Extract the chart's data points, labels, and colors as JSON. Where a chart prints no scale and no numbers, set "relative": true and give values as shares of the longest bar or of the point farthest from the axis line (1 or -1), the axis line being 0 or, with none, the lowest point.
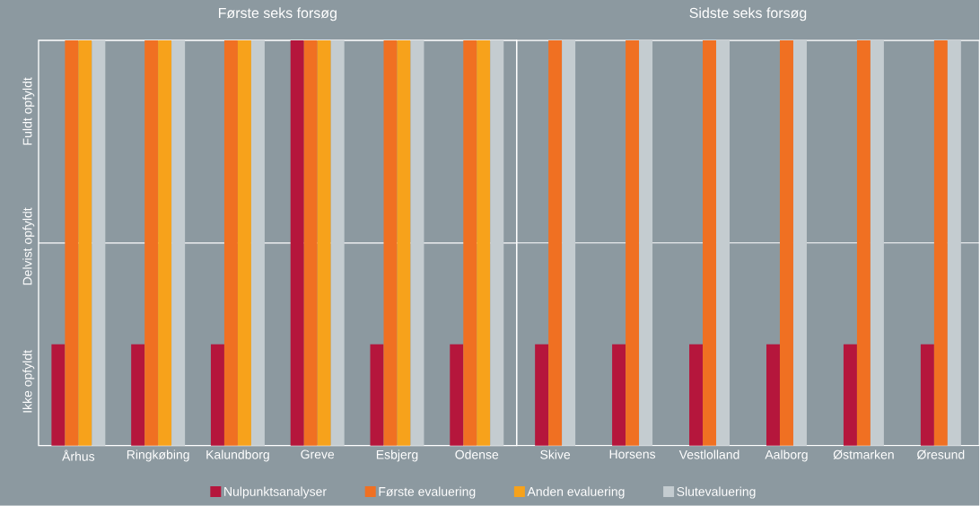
{
  "chart_data": [
    {
      "type": "bar",
      "title": "Første seks forsøg",
      "relative": true,
      "categories": [
        "Århus",
        "Ringkøbing",
        "Kalundborg",
        "Greve",
        "Esbjerg",
        "Odense"
      ],
      "series": [
        {
          "name": "Nulpunktsanalyser",
          "color": "#b5163c",
          "values": [
            0.25,
            0.25,
            0.25,
            1,
            0.25,
            0.25
          ]
        },
        {
          "name": "Første evaluering",
          "color": "#f07022",
          "values": [
            1,
            1,
            1,
            1,
            1,
            1
          ]
        },
        {
          "name": "Anden evaluering",
          "color": "#f7a21b",
          "values": [
            1,
            1,
            1,
            1,
            1,
            1
          ]
        },
        {
          "name": "Slutevaluering",
          "color": "#c4ccd0",
          "values": [
            1,
            1,
            1,
            1,
            1,
            1
          ]
        }
      ],
      "annotations": [
        "Ikke opfyldt",
        "Delvist opfyldt",
        "Fuldt opfyldt"
      ],
      "ref_lines": [
        {
          "axis": "y",
          "value": 0.5,
          "color": "#ffffff"
        }
      ],
      "legend": "bottom"
    },
    {
      "type": "bar",
      "title": "Sidste seks forsøg",
      "relative": true,
      "categories": [
        "Skive",
        "Horsens",
        "Vestlolland",
        "Aalborg",
        "Østmarken",
        "Øresund"
      ],
      "series": [
        {
          "color": "#b5163c",
          "values": [
            0.25,
            0.25,
            0.25,
            0.25,
            0.25,
            0.25
          ]
        },
        {
          "color": "#f07022",
          "values": [
            1,
            1,
            1,
            1,
            1,
            1
          ]
        },
        {
          "color": "#c4ccd0",
          "values": [
            1,
            1,
            1,
            1,
            1,
            1
          ]
        }
      ],
      "ref_lines": [
        {
          "axis": "y",
          "value": 0.5,
          "color": "#ffffff"
        }
      ],
      "tick_labels": "x"
    }
  ]
}
